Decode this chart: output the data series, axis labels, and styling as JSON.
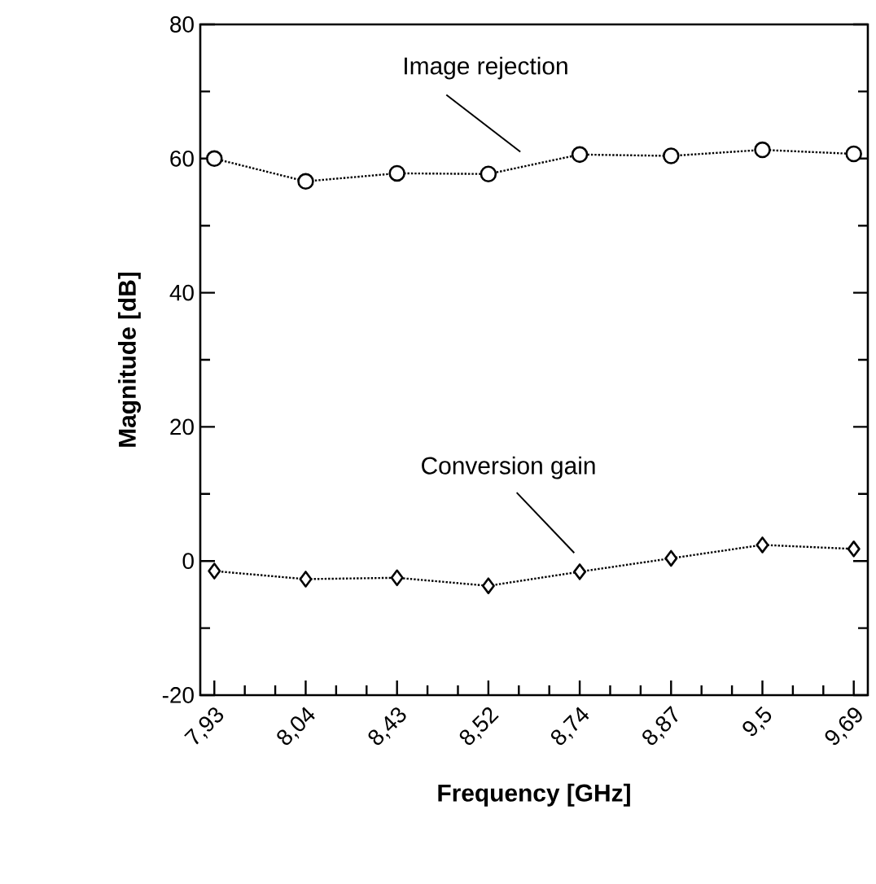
{
  "chart_data": {
    "type": "line",
    "xlabel": "Frequency [GHz]",
    "ylabel": "Magnitude [dB]",
    "categories": [
      "7,93",
      "8,04",
      "8,43",
      "8,52",
      "8,74",
      "8,87",
      "9,5",
      "9,69"
    ],
    "ylim": [
      -20,
      80
    ],
    "yticks": [
      -20,
      0,
      20,
      40,
      60,
      80
    ],
    "line_style": "dotted",
    "grid": false,
    "legend": false,
    "series": [
      {
        "name": "Image rejection",
        "color": "#000000",
        "marker": "circle",
        "values": [
          60,
          56.6,
          57.8,
          57.7,
          60.6,
          60.4,
          61.3,
          60.7
        ]
      },
      {
        "name": "Conversion gain",
        "color": "#000000",
        "marker": "diamond",
        "values": [
          -1.5,
          -2.7,
          -2.5,
          -3.7,
          -1.6,
          0.4,
          2.4,
          1.8
        ]
      }
    ]
  }
}
